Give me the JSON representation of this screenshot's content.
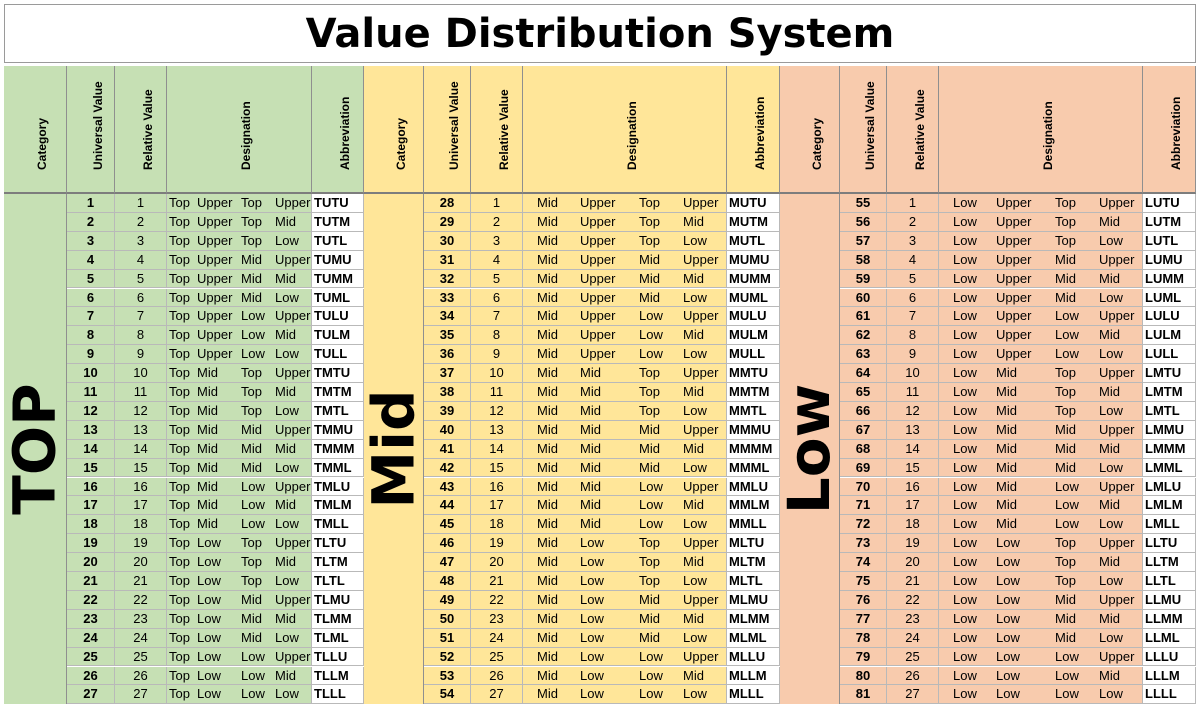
{
  "title": "Value Distribution System",
  "headers": [
    "Category",
    "Universal Value",
    "Relative Value",
    "Designation",
    "Abbreviation"
  ],
  "sections": [
    {
      "category": "TOP",
      "color": "#c6e0b4",
      "rows": [
        {
          "u": "1",
          "r": "1",
          "d": [
            "Top",
            "Upper",
            "Top",
            "Upper"
          ],
          "a": "TUTU"
        },
        {
          "u": "2",
          "r": "2",
          "d": [
            "Top",
            "Upper",
            "Top",
            "Mid"
          ],
          "a": "TUTM"
        },
        {
          "u": "3",
          "r": "3",
          "d": [
            "Top",
            "Upper",
            "Top",
            "Low"
          ],
          "a": "TUTL"
        },
        {
          "u": "4",
          "r": "4",
          "d": [
            "Top",
            "Upper",
            "Mid",
            "Upper"
          ],
          "a": "TUMU"
        },
        {
          "u": "5",
          "r": "5",
          "d": [
            "Top",
            "Upper",
            "Mid",
            "Mid"
          ],
          "a": "TUMM"
        },
        {
          "u": "6",
          "r": "6",
          "d": [
            "Top",
            "Upper",
            "Mid",
            "Low"
          ],
          "a": "TUML"
        },
        {
          "u": "7",
          "r": "7",
          "d": [
            "Top",
            "Upper",
            "Low",
            "Upper"
          ],
          "a": "TULU"
        },
        {
          "u": "8",
          "r": "8",
          "d": [
            "Top",
            "Upper",
            "Low",
            "Mid"
          ],
          "a": "TULM"
        },
        {
          "u": "9",
          "r": "9",
          "d": [
            "Top",
            "Upper",
            "Low",
            "Low"
          ],
          "a": "TULL"
        },
        {
          "u": "10",
          "r": "10",
          "d": [
            "Top",
            "Mid",
            "Top",
            "Upper"
          ],
          "a": "TMTU"
        },
        {
          "u": "11",
          "r": "11",
          "d": [
            "Top",
            "Mid",
            "Top",
            "Mid"
          ],
          "a": "TMTM"
        },
        {
          "u": "12",
          "r": "12",
          "d": [
            "Top",
            "Mid",
            "Top",
            "Low"
          ],
          "a": "TMTL"
        },
        {
          "u": "13",
          "r": "13",
          "d": [
            "Top",
            "Mid",
            "Mid",
            "Upper"
          ],
          "a": "TMMU"
        },
        {
          "u": "14",
          "r": "14",
          "d": [
            "Top",
            "Mid",
            "Mid",
            "Mid"
          ],
          "a": "TMMM"
        },
        {
          "u": "15",
          "r": "15",
          "d": [
            "Top",
            "Mid",
            "Mid",
            "Low"
          ],
          "a": "TMML"
        },
        {
          "u": "16",
          "r": "16",
          "d": [
            "Top",
            "Mid",
            "Low",
            "Upper"
          ],
          "a": "TMLU"
        },
        {
          "u": "17",
          "r": "17",
          "d": [
            "Top",
            "Mid",
            "Low",
            "Mid"
          ],
          "a": "TMLM"
        },
        {
          "u": "18",
          "r": "18",
          "d": [
            "Top",
            "Mid",
            "Low",
            "Low"
          ],
          "a": "TMLL"
        },
        {
          "u": "19",
          "r": "19",
          "d": [
            "Top",
            "Low",
            "Top",
            "Upper"
          ],
          "a": "TLTU"
        },
        {
          "u": "20",
          "r": "20",
          "d": [
            "Top",
            "Low",
            "Top",
            "Mid"
          ],
          "a": "TLTM"
        },
        {
          "u": "21",
          "r": "21",
          "d": [
            "Top",
            "Low",
            "Top",
            "Low"
          ],
          "a": "TLTL"
        },
        {
          "u": "22",
          "r": "22",
          "d": [
            "Top",
            "Low",
            "Mid",
            "Upper"
          ],
          "a": "TLMU"
        },
        {
          "u": "23",
          "r": "23",
          "d": [
            "Top",
            "Low",
            "Mid",
            "Mid"
          ],
          "a": "TLMM"
        },
        {
          "u": "24",
          "r": "24",
          "d": [
            "Top",
            "Low",
            "Mid",
            "Low"
          ],
          "a": "TLML"
        },
        {
          "u": "25",
          "r": "25",
          "d": [
            "Top",
            "Low",
            "Low",
            "Upper"
          ],
          "a": "TLLU"
        },
        {
          "u": "26",
          "r": "26",
          "d": [
            "Top",
            "Low",
            "Low",
            "Mid"
          ],
          "a": "TLLM"
        },
        {
          "u": "27",
          "r": "27",
          "d": [
            "Top",
            "Low",
            "Low",
            "Low"
          ],
          "a": "TLLL"
        }
      ]
    },
    {
      "category": "Mid",
      "color": "#ffe699",
      "rows": [
        {
          "u": "28",
          "r": "1",
          "d": [
            "Mid",
            "Upper",
            "Top",
            "Upper"
          ],
          "a": "MUTU"
        },
        {
          "u": "29",
          "r": "2",
          "d": [
            "Mid",
            "Upper",
            "Top",
            "Mid"
          ],
          "a": "MUTM"
        },
        {
          "u": "30",
          "r": "3",
          "d": [
            "Mid",
            "Upper",
            "Top",
            "Low"
          ],
          "a": "MUTL"
        },
        {
          "u": "31",
          "r": "4",
          "d": [
            "Mid",
            "Upper",
            "Mid",
            "Upper"
          ],
          "a": "MUMU"
        },
        {
          "u": "32",
          "r": "5",
          "d": [
            "Mid",
            "Upper",
            "Mid",
            "Mid"
          ],
          "a": "MUMM"
        },
        {
          "u": "33",
          "r": "6",
          "d": [
            "Mid",
            "Upper",
            "Mid",
            "Low"
          ],
          "a": "MUML"
        },
        {
          "u": "34",
          "r": "7",
          "d": [
            "Mid",
            "Upper",
            "Low",
            "Upper"
          ],
          "a": "MULU"
        },
        {
          "u": "35",
          "r": "8",
          "d": [
            "Mid",
            "Upper",
            "Low",
            "Mid"
          ],
          "a": "MULM"
        },
        {
          "u": "36",
          "r": "9",
          "d": [
            "Mid",
            "Upper",
            "Low",
            "Low"
          ],
          "a": "MULL"
        },
        {
          "u": "37",
          "r": "10",
          "d": [
            "Mid",
            "Mid",
            "Top",
            "Upper"
          ],
          "a": "MMTU"
        },
        {
          "u": "38",
          "r": "11",
          "d": [
            "Mid",
            "Mid",
            "Top",
            "Mid"
          ],
          "a": "MMTM"
        },
        {
          "u": "39",
          "r": "12",
          "d": [
            "Mid",
            "Mid",
            "Top",
            "Low"
          ],
          "a": "MMTL"
        },
        {
          "u": "40",
          "r": "13",
          "d": [
            "Mid",
            "Mid",
            "Mid",
            "Upper"
          ],
          "a": "MMMU"
        },
        {
          "u": "41",
          "r": "14",
          "d": [
            "Mid",
            "Mid",
            "Mid",
            "Mid"
          ],
          "a": "MMMM"
        },
        {
          "u": "42",
          "r": "15",
          "d": [
            "Mid",
            "Mid",
            "Mid",
            "Low"
          ],
          "a": "MMML"
        },
        {
          "u": "43",
          "r": "16",
          "d": [
            "Mid",
            "Mid",
            "Low",
            "Upper"
          ],
          "a": "MMLU"
        },
        {
          "u": "44",
          "r": "17",
          "d": [
            "Mid",
            "Mid",
            "Low",
            "Mid"
          ],
          "a": "MMLM"
        },
        {
          "u": "45",
          "r": "18",
          "d": [
            "Mid",
            "Mid",
            "Low",
            "Low"
          ],
          "a": "MMLL"
        },
        {
          "u": "46",
          "r": "19",
          "d": [
            "Mid",
            "Low",
            "Top",
            "Upper"
          ],
          "a": "MLTU"
        },
        {
          "u": "47",
          "r": "20",
          "d": [
            "Mid",
            "Low",
            "Top",
            "Mid"
          ],
          "a": "MLTM"
        },
        {
          "u": "48",
          "r": "21",
          "d": [
            "Mid",
            "Low",
            "Top",
            "Low"
          ],
          "a": "MLTL"
        },
        {
          "u": "49",
          "r": "22",
          "d": [
            "Mid",
            "Low",
            "Mid",
            "Upper"
          ],
          "a": "MLMU"
        },
        {
          "u": "50",
          "r": "23",
          "d": [
            "Mid",
            "Low",
            "Mid",
            "Mid"
          ],
          "a": "MLMM"
        },
        {
          "u": "51",
          "r": "24",
          "d": [
            "Mid",
            "Low",
            "Mid",
            "Low"
          ],
          "a": "MLML"
        },
        {
          "u": "52",
          "r": "25",
          "d": [
            "Mid",
            "Low",
            "Low",
            "Upper"
          ],
          "a": "MLLU"
        },
        {
          "u": "53",
          "r": "26",
          "d": [
            "Mid",
            "Low",
            "Low",
            "Mid"
          ],
          "a": "MLLM"
        },
        {
          "u": "54",
          "r": "27",
          "d": [
            "Mid",
            "Low",
            "Low",
            "Low"
          ],
          "a": "MLLL"
        }
      ]
    },
    {
      "category": "Low",
      "color": "#f8cbad",
      "rows": [
        {
          "u": "55",
          "r": "1",
          "d": [
            "Low",
            "Upper",
            "Top",
            "Upper"
          ],
          "a": "LUTU"
        },
        {
          "u": "56",
          "r": "2",
          "d": [
            "Low",
            "Upper",
            "Top",
            "Mid"
          ],
          "a": "LUTM"
        },
        {
          "u": "57",
          "r": "3",
          "d": [
            "Low",
            "Upper",
            "Top",
            "Low"
          ],
          "a": "LUTL"
        },
        {
          "u": "58",
          "r": "4",
          "d": [
            "Low",
            "Upper",
            "Mid",
            "Upper"
          ],
          "a": "LUMU"
        },
        {
          "u": "59",
          "r": "5",
          "d": [
            "Low",
            "Upper",
            "Mid",
            "Mid"
          ],
          "a": "LUMM"
        },
        {
          "u": "60",
          "r": "6",
          "d": [
            "Low",
            "Upper",
            "Mid",
            "Low"
          ],
          "a": "LUML"
        },
        {
          "u": "61",
          "r": "7",
          "d": [
            "Low",
            "Upper",
            "Low",
            "Upper"
          ],
          "a": "LULU"
        },
        {
          "u": "62",
          "r": "8",
          "d": [
            "Low",
            "Upper",
            "Low",
            "Mid"
          ],
          "a": "LULM"
        },
        {
          "u": "63",
          "r": "9",
          "d": [
            "Low",
            "Upper",
            "Low",
            "Low"
          ],
          "a": "LULL"
        },
        {
          "u": "64",
          "r": "10",
          "d": [
            "Low",
            "Mid",
            "Top",
            "Upper"
          ],
          "a": "LMTU"
        },
        {
          "u": "65",
          "r": "11",
          "d": [
            "Low",
            "Mid",
            "Top",
            "Mid"
          ],
          "a": "LMTM"
        },
        {
          "u": "66",
          "r": "12",
          "d": [
            "Low",
            "Mid",
            "Top",
            "Low"
          ],
          "a": "LMTL"
        },
        {
          "u": "67",
          "r": "13",
          "d": [
            "Low",
            "Mid",
            "Mid",
            "Upper"
          ],
          "a": "LMMU"
        },
        {
          "u": "68",
          "r": "14",
          "d": [
            "Low",
            "Mid",
            "Mid",
            "Mid"
          ],
          "a": "LMMM"
        },
        {
          "u": "69",
          "r": "15",
          "d": [
            "Low",
            "Mid",
            "Mid",
            "Low"
          ],
          "a": "LMML"
        },
        {
          "u": "70",
          "r": "16",
          "d": [
            "Low",
            "Mid",
            "Low",
            "Upper"
          ],
          "a": "LMLU"
        },
        {
          "u": "71",
          "r": "17",
          "d": [
            "Low",
            "Mid",
            "Low",
            "Mid"
          ],
          "a": "LMLM"
        },
        {
          "u": "72",
          "r": "18",
          "d": [
            "Low",
            "Mid",
            "Low",
            "Low"
          ],
          "a": "LMLL"
        },
        {
          "u": "73",
          "r": "19",
          "d": [
            "Low",
            "Low",
            "Top",
            "Upper"
          ],
          "a": "LLTU"
        },
        {
          "u": "74",
          "r": "20",
          "d": [
            "Low",
            "Low",
            "Top",
            "Mid"
          ],
          "a": "LLTM"
        },
        {
          "u": "75",
          "r": "21",
          "d": [
            "Low",
            "Low",
            "Top",
            "Low"
          ],
          "a": "LLTL"
        },
        {
          "u": "76",
          "r": "22",
          "d": [
            "Low",
            "Low",
            "Mid",
            "Upper"
          ],
          "a": "LLMU"
        },
        {
          "u": "77",
          "r": "23",
          "d": [
            "Low",
            "Low",
            "Mid",
            "Mid"
          ],
          "a": "LLMM"
        },
        {
          "u": "78",
          "r": "24",
          "d": [
            "Low",
            "Low",
            "Mid",
            "Low"
          ],
          "a": "LLML"
        },
        {
          "u": "79",
          "r": "25",
          "d": [
            "Low",
            "Low",
            "Low",
            "Upper"
          ],
          "a": "LLLU"
        },
        {
          "u": "80",
          "r": "26",
          "d": [
            "Low",
            "Low",
            "Low",
            "Mid"
          ],
          "a": "LLLM"
        },
        {
          "u": "81",
          "r": "27",
          "d": [
            "Low",
            "Low",
            "Low",
            "Low"
          ],
          "a": "LLLL"
        }
      ]
    }
  ]
}
